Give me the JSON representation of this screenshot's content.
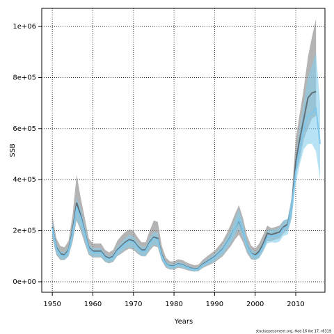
{
  "chart_data": {
    "type": "line_band",
    "xlabel": "Years",
    "ylabel": "SSB",
    "footnote": "stockassessment.org, Had 16 lke 17, r8319",
    "xlim": [
      1947.4,
      2017.2
    ],
    "ylim": [
      -41000,
      1071000
    ],
    "xticks": [
      1950,
      1960,
      1970,
      1980,
      1990,
      2000,
      2010
    ],
    "yticks": [
      {
        "value": 0,
        "label": "0e+00"
      },
      {
        "value": 200000,
        "label": "2e+05"
      },
      {
        "value": 400000,
        "label": "4e+05"
      },
      {
        "value": 600000,
        "label": "6e+05"
      },
      {
        "value": 800000,
        "label": "8e+05"
      },
      {
        "value": 1000000,
        "label": "1e+06"
      }
    ],
    "grid": true,
    "series": [
      {
        "color": "#5f6f78",
        "band_color": "rgba(130,130,130,0.6)",
        "x": [
          1950,
          1951,
          1952,
          1953,
          1954,
          1955,
          1956,
          1957,
          1958,
          1959,
          1960,
          1961,
          1962,
          1963,
          1964,
          1965,
          1966,
          1967,
          1968,
          1969,
          1970,
          1971,
          1972,
          1973,
          1974,
          1975,
          1976,
          1977,
          1978,
          1979,
          1980,
          1981,
          1982,
          1983,
          1984,
          1985,
          1986,
          1987,
          1988,
          1989,
          1990,
          1991,
          1992,
          1993,
          1994,
          1995,
          1996,
          1997,
          1998,
          1999,
          2000,
          2001,
          2002,
          2003,
          2004,
          2005,
          2006,
          2007,
          2008,
          2009,
          2010,
          2011,
          2012,
          2013,
          2014,
          2015
        ],
        "values": [
          215000,
          135000,
          110000,
          105000,
          125000,
          200000,
          310000,
          260000,
          195000,
          135000,
          120000,
          120000,
          120000,
          100000,
          92000,
          100000,
          125000,
          140000,
          155000,
          165000,
          160000,
          140000,
          125000,
          125000,
          155000,
          175000,
          170000,
          105000,
          72000,
          62000,
          62000,
          70000,
          67000,
          60000,
          54000,
          50000,
          52000,
          68000,
          78000,
          88000,
          98000,
          112000,
          128000,
          152000,
          178000,
          210000,
          240000,
          198000,
          142000,
          112000,
          105000,
          120000,
          150000,
          190000,
          185000,
          190000,
          195000,
          215000,
          225000,
          290000,
          470000,
          560000,
          640000,
          720000,
          740000,
          745000
        ],
        "lower": [
          170000,
          105000,
          85000,
          85000,
          100000,
          155000,
          240000,
          200000,
          150000,
          105000,
          95000,
          95000,
          95000,
          78000,
          72000,
          78000,
          100000,
          110000,
          122000,
          130000,
          125000,
          110000,
          100000,
          100000,
          122000,
          140000,
          135000,
          82000,
          55000,
          48000,
          48000,
          55000,
          52000,
          47000,
          42000,
          40000,
          41000,
          53000,
          61000,
          68000,
          76000,
          88000,
          100000,
          120000,
          140000,
          165000,
          185000,
          155000,
          112000,
          88000,
          85000,
          95000,
          120000,
          160000,
          160000,
          165000,
          170000,
          190000,
          200000,
          250000,
          420000,
          480000,
          560000,
          600000,
          640000,
          650000
        ],
        "upper": [
          260000,
          170000,
          140000,
          135000,
          160000,
          260000,
          420000,
          330000,
          250000,
          170000,
          150000,
          150000,
          150000,
          125000,
          115000,
          125000,
          160000,
          180000,
          195000,
          205000,
          200000,
          175000,
          155000,
          155000,
          200000,
          240000,
          235000,
          140000,
          95000,
          80000,
          80000,
          88000,
          85000,
          77000,
          70000,
          65000,
          67000,
          85000,
          98000,
          110000,
          122000,
          140000,
          160000,
          190000,
          225000,
          265000,
          300000,
          250000,
          180000,
          142000,
          130000,
          150000,
          185000,
          220000,
          210000,
          215000,
          220000,
          240000,
          245000,
          330000,
          560000,
          660000,
          760000,
          880000,
          960000,
          1030000
        ]
      },
      {
        "color": "#7ec8ee",
        "band_color": "rgba(135,206,235,0.6)",
        "x": [
          1950,
          1951,
          1952,
          1953,
          1954,
          1955,
          1956,
          1957,
          1958,
          1959,
          1960,
          1961,
          1962,
          1963,
          1964,
          1965,
          1966,
          1967,
          1968,
          1969,
          1970,
          1971,
          1972,
          1973,
          1974,
          1975,
          1976,
          1977,
          1978,
          1979,
          1980,
          1981,
          1982,
          1983,
          1984,
          1985,
          1986,
          1987,
          1988,
          1989,
          1990,
          1991,
          1992,
          1993,
          1994,
          1995,
          1996,
          1997,
          1998,
          1999,
          2000,
          2001,
          2002,
          2003,
          2004,
          2005,
          2006,
          2007,
          2008,
          2009,
          2010,
          2011,
          2012,
          2013,
          2014,
          2015,
          2016
        ],
        "values": [
          210000,
          130000,
          105000,
          100000,
          120000,
          190000,
          290000,
          250000,
          190000,
          130000,
          115000,
          115000,
          115000,
          95000,
          88000,
          95000,
          120000,
          135000,
          150000,
          160000,
          155000,
          135000,
          120000,
          120000,
          150000,
          170000,
          165000,
          100000,
          70000,
          60000,
          60000,
          68000,
          65000,
          58000,
          52000,
          48000,
          50000,
          65000,
          75000,
          85000,
          95000,
          110000,
          125000,
          150000,
          175000,
          210000,
          245000,
          200000,
          140000,
          110000,
          100000,
          110000,
          140000,
          175000,
          180000,
          178000,
          185000,
          210000,
          215000,
          290000,
          430000,
          520000,
          600000,
          650000,
          660000,
          680000,
          540000
        ],
        "lower": [
          180000,
          110000,
          90000,
          85000,
          100000,
          160000,
          245000,
          210000,
          160000,
          110000,
          98000,
          98000,
          98000,
          80000,
          75000,
          80000,
          100000,
          115000,
          128000,
          135000,
          130000,
          115000,
          100000,
          100000,
          128000,
          145000,
          140000,
          85000,
          60000,
          50000,
          50000,
          58000,
          55000,
          50000,
          44000,
          40000,
          42000,
          55000,
          64000,
          72000,
          80000,
          94000,
          105000,
          128000,
          150000,
          180000,
          210000,
          170000,
          120000,
          92000,
          85000,
          92000,
          120000,
          150000,
          155000,
          152000,
          158000,
          180000,
          185000,
          250000,
          380000,
          460000,
          520000,
          540000,
          540000,
          510000,
          400000
        ],
        "upper": [
          240000,
          150000,
          120000,
          115000,
          140000,
          220000,
          330000,
          290000,
          220000,
          150000,
          132000,
          132000,
          132000,
          110000,
          100000,
          110000,
          138000,
          155000,
          172000,
          184000,
          178000,
          155000,
          138000,
          138000,
          172000,
          195000,
          190000,
          115000,
          80000,
          70000,
          70000,
          78000,
          75000,
          67000,
          60000,
          55000,
          58000,
          75000,
          86000,
          98000,
          110000,
          126000,
          144000,
          172000,
          200000,
          245000,
          285000,
          230000,
          160000,
          128000,
          115000,
          128000,
          160000,
          200000,
          205000,
          205000,
          212000,
          240000,
          248000,
          330000,
          480000,
          610000,
          700000,
          800000,
          850000,
          900000,
          700000
        ]
      }
    ]
  }
}
